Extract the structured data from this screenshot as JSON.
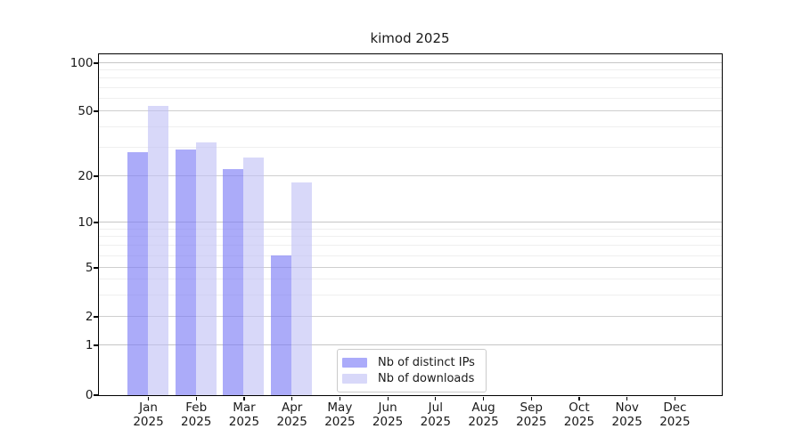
{
  "chart_data": {
    "type": "bar",
    "title": "kimod 2025",
    "categories": [
      "Jan 2025",
      "Feb 2025",
      "Mar 2025",
      "Apr 2025",
      "May 2025",
      "Jun 2025",
      "Jul 2025",
      "Aug 2025",
      "Sep 2025",
      "Oct 2025",
      "Nov 2025",
      "Dec 2025"
    ],
    "series": [
      {
        "name": "Nb of distinct IPs",
        "color": "rgba(122,122,246,0.63)",
        "swatch": "#ababfa",
        "values": [
          28,
          29,
          22,
          6,
          0,
          0,
          0,
          0,
          0,
          0,
          0,
          0
        ]
      },
      {
        "name": "Nb of downloads",
        "color": "rgba(190,190,245,0.60)",
        "swatch": "#d8d8f9",
        "values": [
          54,
          32,
          26,
          18,
          0,
          0,
          0,
          0,
          0,
          0,
          0,
          0
        ]
      }
    ],
    "xlabel": "",
    "ylabel": "",
    "yscale": "log-like (labeled ticks 0,1,2,5,10,20,50,100; 0 sits on the baseline)",
    "ylim": [
      0,
      115
    ],
    "yticks": [
      0,
      1,
      2,
      5,
      10,
      20,
      50,
      100
    ],
    "minor_yticks": [
      3,
      4,
      6,
      7,
      8,
      9,
      30,
      40,
      60,
      70,
      80,
      90
    ],
    "grid": "horizontal major + log-minor gridlines",
    "legend": {
      "position": "inside bottom-center",
      "items": [
        "Nb of distinct IPs",
        "Nb of downloads"
      ]
    },
    "colors": {
      "bar_distinct_ips": "#ababfa",
      "bar_downloads": "#d8d8f9",
      "grid_decade": "#c6c6c6",
      "grid_major": "#cfcfcf",
      "grid_minor": "#efefef",
      "axis_spine": "#000000",
      "text": "#1a1a1a",
      "legend_border": "#cbcbcb"
    }
  }
}
